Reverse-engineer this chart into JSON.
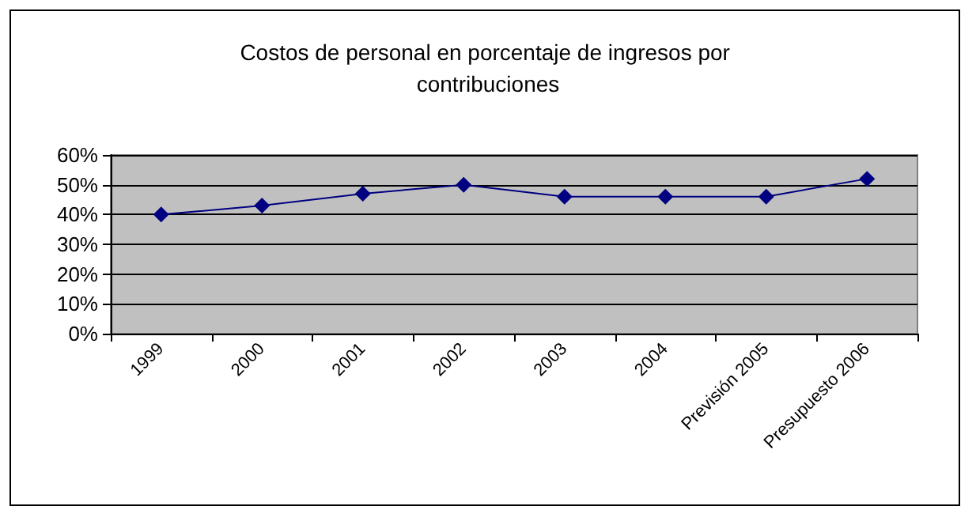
{
  "chart_data": {
    "type": "line",
    "title": "Costos de personal en porcentaje de ingresos por contribuciones",
    "categories": [
      "1999",
      "2000",
      "2001",
      "2002",
      "2003",
      "2004",
      "Previsión 2005",
      "Presupuesto 2006"
    ],
    "series": [
      {
        "color": "#000080",
        "values": [
          40,
          43,
          47,
          50,
          46,
          46,
          46,
          52
        ]
      }
    ],
    "ylim": [
      0,
      60
    ],
    "yticks": [
      {
        "value": 0,
        "label": "0%"
      },
      {
        "value": 10,
        "label": "10%"
      },
      {
        "value": 20,
        "label": "20%"
      },
      {
        "value": 30,
        "label": "30%"
      },
      {
        "value": 40,
        "label": "40%"
      },
      {
        "value": 50,
        "label": "50%"
      },
      {
        "value": 60,
        "label": "60%"
      }
    ],
    "grid": "y",
    "marker": "diamond",
    "line_style": "solid"
  }
}
